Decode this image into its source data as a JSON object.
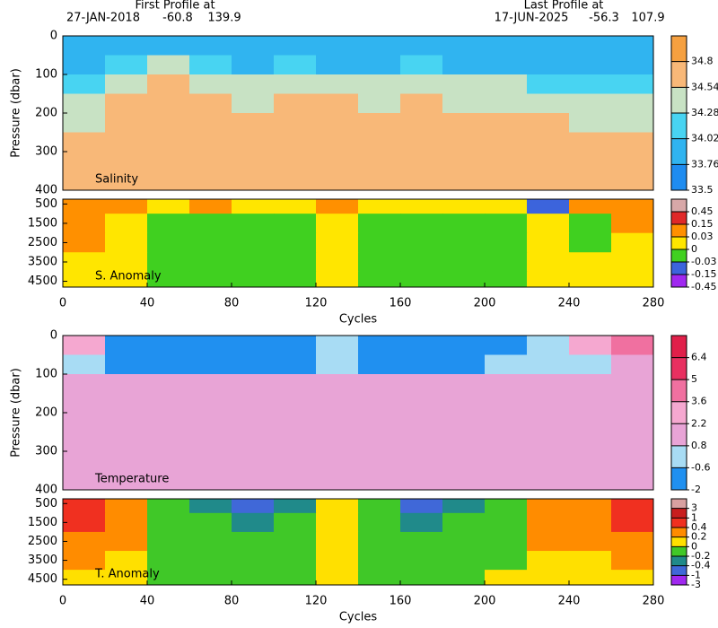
{
  "header": {
    "first_label": "First Profile at",
    "first_date": "27-JAN-2018",
    "first_lat": -60.8,
    "first_lon": 139.9,
    "last_label": "Last Profile at",
    "last_date": "17-JUN-2025",
    "last_lat": -56.3,
    "last_lon": 107.9
  },
  "chart_data": [
    {
      "type": "heatmap",
      "label": "Salinity",
      "ylabel": "Pressure (dbar)",
      "xlim": [
        0,
        280
      ],
      "ylim": [
        0,
        400
      ],
      "yticks": [
        0,
        100,
        200,
        300,
        400
      ],
      "x_edges": [
        0,
        20,
        40,
        60,
        80,
        100,
        120,
        140,
        160,
        180,
        200,
        220,
        240,
        260,
        280
      ],
      "y_edges": [
        0,
        50,
        100,
        150,
        200,
        250,
        300,
        350,
        400
      ],
      "z": [
        [
          33.9,
          33.85,
          33.9,
          33.9,
          33.85,
          33.9,
          33.9,
          33.9,
          33.9,
          33.85,
          33.9,
          33.9,
          33.85,
          33.9
        ],
        [
          34.0,
          34.1,
          34.3,
          34.1,
          34.0,
          34.1,
          34.0,
          34.0,
          34.1,
          34.0,
          34.0,
          34.0,
          34.0,
          34.0
        ],
        [
          34.2,
          34.5,
          34.6,
          34.5,
          34.3,
          34.5,
          34.4,
          34.3,
          34.5,
          34.3,
          34.3,
          34.2,
          34.2,
          34.1
        ],
        [
          34.3,
          34.6,
          34.6,
          34.6,
          34.5,
          34.6,
          34.6,
          34.5,
          34.6,
          34.5,
          34.5,
          34.4,
          34.3,
          34.3
        ],
        [
          34.5,
          34.65,
          34.65,
          34.65,
          34.6,
          34.65,
          34.65,
          34.6,
          34.65,
          34.6,
          34.6,
          34.55,
          34.5,
          34.5
        ],
        [
          34.6,
          34.68,
          34.68,
          34.68,
          34.66,
          34.68,
          34.68,
          34.66,
          34.68,
          34.66,
          34.66,
          34.62,
          34.6,
          34.6
        ],
        [
          34.65,
          34.7,
          34.7,
          34.7,
          34.68,
          34.7,
          34.7,
          34.68,
          34.7,
          34.68,
          34.68,
          34.65,
          34.62,
          34.62
        ],
        [
          34.68,
          34.7,
          34.7,
          34.7,
          34.7,
          34.7,
          34.7,
          34.7,
          34.7,
          34.7,
          34.7,
          34.68,
          34.65,
          34.65
        ]
      ],
      "colorbar": {
        "ticks": [
          34.8,
          34.54,
          34.28,
          34.02,
          33.76,
          33.5
        ],
        "colors": [
          "#f5a040",
          "#f8b878",
          "#c8e2c4",
          "#48d4f2",
          "#30b4f0",
          "#1e8cf0"
        ]
      }
    },
    {
      "type": "heatmap",
      "label": "S. Anomaly",
      "xlabel": "Cycles",
      "xlim": [
        0,
        280
      ],
      "xticks": [
        0,
        40,
        80,
        120,
        160,
        200,
        240,
        280
      ],
      "ylim": [
        250,
        4800
      ],
      "yticks": [
        500,
        1500,
        2500,
        3500,
        4500
      ],
      "x_edges": [
        0,
        20,
        40,
        60,
        80,
        100,
        120,
        140,
        160,
        180,
        200,
        220,
        240,
        260,
        280
      ],
      "y_edges": [
        250,
        1000,
        2000,
        3000,
        4000,
        4800
      ],
      "z": [
        [
          0.1,
          0.05,
          0.02,
          0.05,
          0.01,
          0.01,
          0.05,
          0.02,
          0.01,
          0.02,
          0.02,
          -0.05,
          0.05,
          0.1
        ],
        [
          0.05,
          0.02,
          -0.02,
          -0.02,
          -0.02,
          -0.02,
          0.01,
          -0.02,
          -0.02,
          -0.02,
          -0.02,
          0.01,
          -0.01,
          0.05
        ],
        [
          0.04,
          0.01,
          -0.02,
          -0.02,
          -0.02,
          -0.02,
          0.01,
          -0.02,
          -0.02,
          -0.02,
          -0.02,
          0.01,
          -0.01,
          0.02
        ],
        [
          0.02,
          0.01,
          -0.02,
          -0.01,
          -0.02,
          -0.02,
          0.01,
          -0.02,
          -0.02,
          -0.02,
          -0.02,
          0.01,
          0.01,
          0.01
        ],
        [
          0.01,
          0.01,
          -0.02,
          -0.02,
          -0.02,
          -0.02,
          0.01,
          -0.02,
          -0.02,
          -0.02,
          -0.02,
          0.01,
          0.01,
          0.01
        ]
      ],
      "colorbar": {
        "ticks": [
          0.45,
          0.15,
          0.03,
          0,
          -0.03,
          -0.15,
          -0.45
        ],
        "colors": [
          "#d8a8a8",
          "#e02828",
          "#ff9000",
          "#ffe600",
          "#40d020",
          "#3c64dc",
          "#a028f0"
        ]
      }
    },
    {
      "type": "heatmap",
      "label": "Temperature",
      "ylabel": "Pressure (dbar)",
      "xlim": [
        0,
        280
      ],
      "ylim": [
        0,
        400
      ],
      "yticks": [
        0,
        100,
        200,
        300,
        400
      ],
      "x_edges": [
        0,
        20,
        40,
        60,
        80,
        100,
        120,
        140,
        160,
        180,
        200,
        220,
        240,
        260,
        280
      ],
      "y_edges": [
        0,
        50,
        100,
        150,
        200,
        250,
        300,
        350,
        400
      ],
      "z": [
        [
          3,
          -1,
          -1,
          -1.2,
          -1.2,
          -1,
          0,
          -1,
          -1.2,
          -1,
          -1,
          0.5,
          2.5,
          4
        ],
        [
          0,
          -0.8,
          -0.8,
          -1,
          -0.8,
          -1,
          0,
          -0.8,
          -1,
          -0.9,
          -0.5,
          0.5,
          0.5,
          2
        ],
        [
          1.5,
          1.5,
          1.6,
          1.2,
          1.5,
          1.6,
          1.8,
          1.5,
          1.5,
          1.6,
          1.6,
          1.5,
          1.5,
          1.8
        ],
        [
          1.8,
          1.8,
          1.8,
          1.8,
          1.8,
          1.8,
          1.9,
          1.8,
          1.8,
          1.8,
          1.8,
          1.8,
          1.8,
          1.9
        ],
        [
          1.9,
          1.9,
          1.9,
          1.9,
          1.9,
          1.9,
          1.9,
          1.9,
          1.9,
          1.9,
          1.9,
          1.9,
          1.9,
          1.9
        ],
        [
          1.9,
          1.9,
          1.9,
          1.9,
          1.9,
          1.9,
          1.9,
          1.9,
          1.9,
          1.9,
          1.9,
          1.9,
          1.9,
          1.9
        ],
        [
          2.0,
          1.9,
          1.9,
          1.9,
          1.9,
          1.9,
          1.9,
          1.9,
          1.9,
          1.9,
          1.9,
          1.9,
          1.9,
          2.0
        ],
        [
          2.0,
          2.0,
          1.9,
          1.9,
          1.9,
          1.9,
          1.9,
          1.9,
          1.9,
          1.9,
          1.9,
          1.9,
          2.0,
          2.0
        ]
      ],
      "colorbar": {
        "ticks": [
          6.4,
          5,
          3.6,
          2.2,
          0.8,
          -0.6,
          -2
        ],
        "colors": [
          "#e0204a",
          "#e83060",
          "#f070a0",
          "#f5a8d0",
          "#e8a4d6",
          "#a8dcf4",
          "#2090f0"
        ]
      }
    },
    {
      "type": "heatmap",
      "label": "T. Anomaly",
      "xlabel": "Cycles",
      "xlim": [
        0,
        280
      ],
      "xticks": [
        0,
        40,
        80,
        120,
        160,
        200,
        240,
        280
      ],
      "ylim": [
        250,
        4800
      ],
      "yticks": [
        500,
        1500,
        2500,
        3500,
        4500
      ],
      "x_edges": [
        0,
        20,
        40,
        60,
        80,
        100,
        120,
        140,
        160,
        180,
        200,
        220,
        240,
        260,
        280
      ],
      "y_edges": [
        250,
        1000,
        2000,
        3000,
        4000,
        4800
      ],
      "z": [
        [
          0.5,
          0.3,
          -0.1,
          -0.3,
          -0.5,
          -0.3,
          0.1,
          -0.2,
          -0.5,
          -0.3,
          -0.2,
          0.3,
          0.3,
          0.6
        ],
        [
          0.5,
          0.3,
          -0.1,
          -0.2,
          -0.3,
          -0.2,
          0.1,
          -0.2,
          -0.4,
          -0.2,
          -0.1,
          0.3,
          0.3,
          0.5
        ],
        [
          0.3,
          0.2,
          -0.1,
          -0.1,
          -0.2,
          -0.1,
          0.1,
          -0.1,
          -0.2,
          -0.1,
          -0.1,
          0.2,
          0.2,
          0.3
        ],
        [
          0.2,
          0.1,
          -0.1,
          -0.1,
          -0.1,
          -0.1,
          0.1,
          -0.1,
          -0.1,
          -0.1,
          -0.1,
          0.1,
          0.1,
          0.2
        ],
        [
          0.1,
          0.1,
          -0.1,
          -0.1,
          -0.1,
          -0.1,
          0.1,
          -0.1,
          -0.1,
          -0.1,
          0.05,
          0.1,
          0.1,
          0.1
        ]
      ],
      "colorbar": {
        "ticks": [
          3,
          1,
          0.4,
          0.2,
          0,
          -0.2,
          -0.4,
          -1,
          -3
        ],
        "colors": [
          "#d8a0a0",
          "#c81e1e",
          "#f03020",
          "#ff8c00",
          "#ffe000",
          "#40c828",
          "#208a8a",
          "#4068d8",
          "#a028f0"
        ]
      }
    }
  ]
}
